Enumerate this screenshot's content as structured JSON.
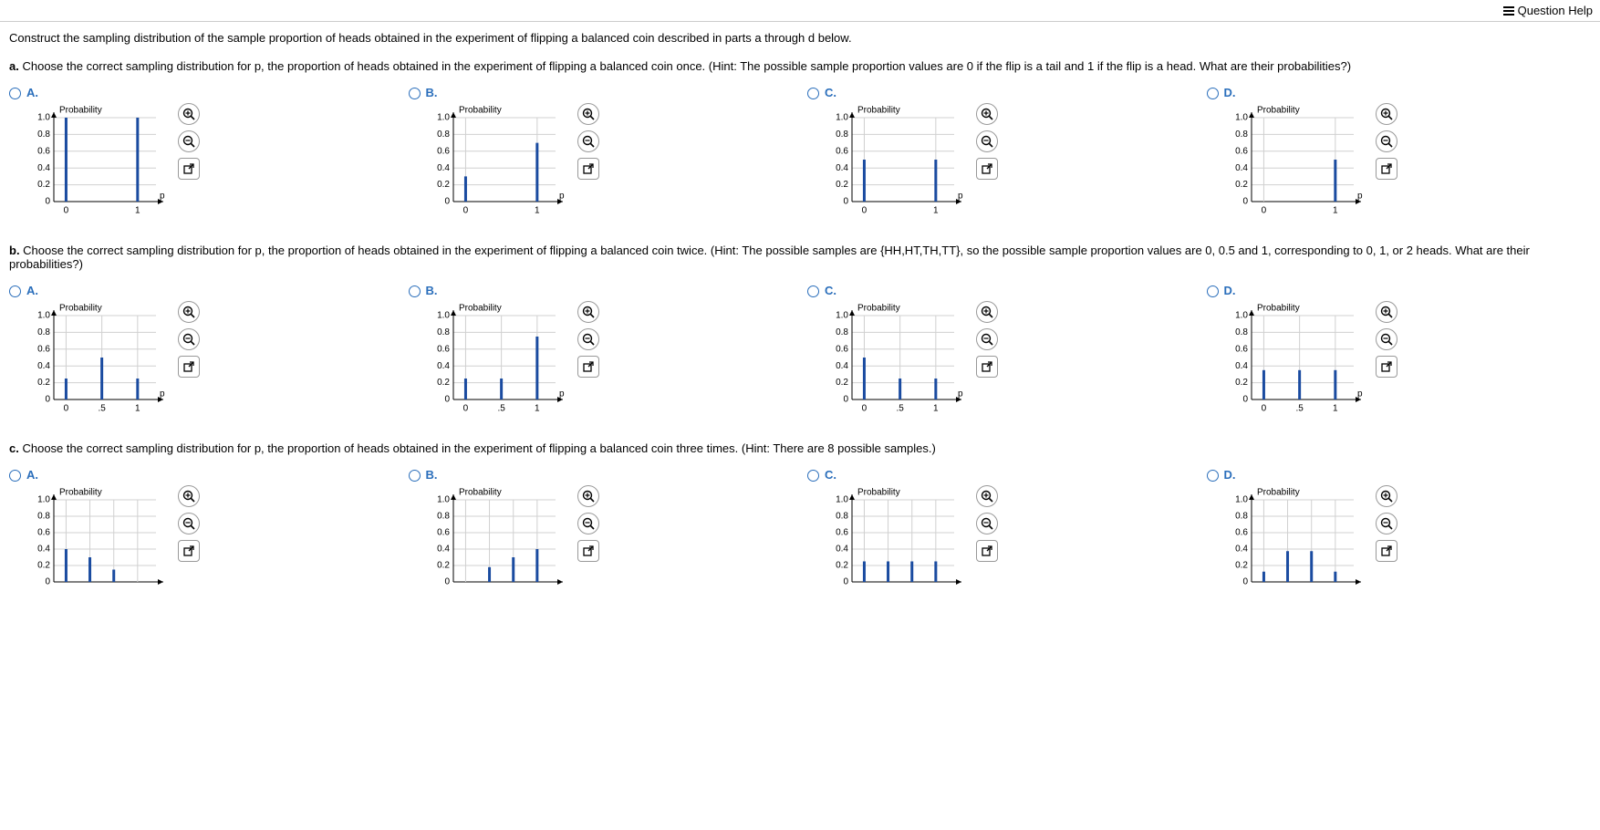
{
  "header": {
    "question_help": "Question Help"
  },
  "intro": "Construct the sampling distribution of the sample proportion of heads obtained in the experiment of flipping a balanced coin described in parts a through d below.",
  "parts": [
    {
      "id": "a",
      "label": "a.",
      "text": "Choose the correct sampling distribution for p, the proportion of heads obtained in the experiment of flipping a balanced coin once. (Hint: The possible sample proportion values are 0 if the flip is a tail and 1 if the flip is a head. What are their probabilities?)",
      "chart_meta": {
        "y_label": "Probability",
        "x_label": "p",
        "y_ticks": [
          0,
          0.2,
          0.4,
          0.6,
          0.8,
          1
        ],
        "x_ticks": [
          0,
          1
        ],
        "bar_color": "#1a4ba0",
        "grid_color": "#d0d0d0",
        "axis_color": "#000000",
        "font_size": 10
      },
      "options": [
        {
          "label": "A.",
          "x": [
            0,
            1
          ],
          "y": [
            1.0,
            1.0
          ]
        },
        {
          "label": "B.",
          "x": [
            0,
            1
          ],
          "y": [
            0.3,
            0.7
          ]
        },
        {
          "label": "C.",
          "x": [
            0,
            1
          ],
          "y": [
            0.5,
            0.5
          ]
        },
        {
          "label": "D.",
          "x": [
            0,
            1
          ],
          "y": [
            0.0,
            0.5
          ]
        }
      ]
    },
    {
      "id": "b",
      "label": "b.",
      "text": "Choose the correct sampling distribution for p, the proportion of heads obtained in the experiment of flipping a balanced coin twice. (Hint: The possible samples are {HH,HT,TH,TT}, so the possible sample proportion values are 0, 0.5 and 1, corresponding to 0, 1, or 2 heads. What are their probabilities?)",
      "chart_meta": {
        "y_label": "Probability",
        "x_label": "p",
        "y_ticks": [
          0,
          0.2,
          0.4,
          0.6,
          0.8,
          1
        ],
        "x_ticks": [
          0,
          0.5,
          1
        ],
        "x_tick_labels": [
          "0",
          ".5",
          "1"
        ],
        "bar_color": "#1a4ba0",
        "grid_color": "#d0d0d0",
        "axis_color": "#000000",
        "font_size": 10
      },
      "options": [
        {
          "label": "A.",
          "x": [
            0,
            0.5,
            1
          ],
          "y": [
            0.25,
            0.5,
            0.25
          ]
        },
        {
          "label": "B.",
          "x": [
            0,
            0.5,
            1
          ],
          "y": [
            0.25,
            0.25,
            0.75
          ]
        },
        {
          "label": "C.",
          "x": [
            0,
            0.5,
            1
          ],
          "y": [
            0.5,
            0.25,
            0.25
          ]
        },
        {
          "label": "D.",
          "x": [
            0,
            0.5,
            1
          ],
          "y": [
            0.35,
            0.35,
            0.35
          ]
        }
      ]
    },
    {
      "id": "c",
      "label": "c.",
      "text": "Choose the correct sampling distribution for p, the proportion of heads obtained in the experiment of flipping a balanced coin three times. (Hint: There are 8 possible samples.)",
      "chart_meta": {
        "y_label": "Probability",
        "x_label": "p",
        "y_ticks": [
          0,
          0.2,
          0.4,
          0.6,
          0.8,
          1
        ],
        "x_ticks": [
          0,
          0.333,
          0.667,
          1
        ],
        "bar_color": "#1a4ba0",
        "grid_color": "#d0d0d0",
        "axis_color": "#000000",
        "font_size": 10
      },
      "options": [
        {
          "label": "A.",
          "x": [
            0,
            0.333,
            0.667,
            1
          ],
          "y": [
            0.4,
            0.3,
            0.15,
            0.0
          ]
        },
        {
          "label": "B.",
          "x": [
            0,
            0.333,
            0.667,
            1
          ],
          "y": [
            0.0,
            0.18,
            0.3,
            0.4
          ]
        },
        {
          "label": "C.",
          "x": [
            0,
            0.333,
            0.667,
            1
          ],
          "y": [
            0.25,
            0.25,
            0.25,
            0.25
          ]
        },
        {
          "label": "D.",
          "x": [
            0,
            0.333,
            0.667,
            1
          ],
          "y": [
            0.125,
            0.375,
            0.375,
            0.125
          ]
        }
      ]
    }
  ],
  "icons": {
    "zoom_in": "zoom-in",
    "zoom_out": "zoom-out",
    "open": "open-new"
  }
}
